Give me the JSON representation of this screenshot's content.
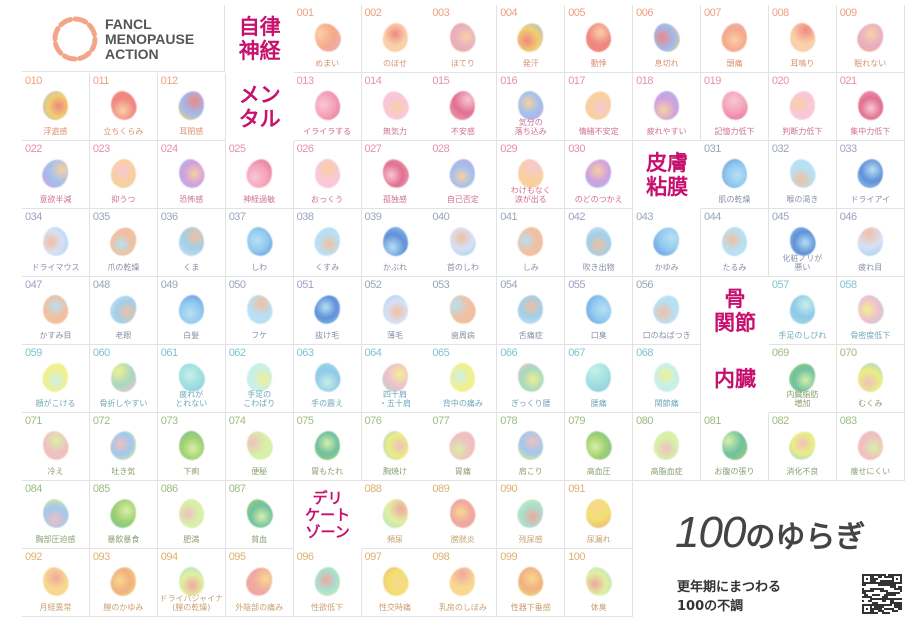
{
  "logo": {
    "lines": [
      "FANCL",
      "MENOPAUSE",
      "ACTION"
    ],
    "color": "#f3a58a"
  },
  "accent_color": "#c8106e",
  "categories": [
    {
      "id": "auto",
      "label": "自律\n神経",
      "num_color": "#f0a080",
      "label_color": "#d99070",
      "palette": [
        "#f6a98a",
        "#f9d0a8",
        "#e8b0c0",
        "#f0d070",
        "#f08880",
        "#a0b8f0"
      ]
    },
    {
      "id": "mental",
      "label": "メン\nタル",
      "num_color": "#e890a8",
      "label_color": "#d0708e",
      "palette": [
        "#f4a0b8",
        "#f8c8d8",
        "#e07090",
        "#a0c0f0",
        "#f8d0a0",
        "#d0a0e0"
      ]
    },
    {
      "id": "skin",
      "label": "皮膚\n粘膜",
      "num_color": "#9aa4bc",
      "label_color": "#8890a8",
      "palette": [
        "#90c8f0",
        "#b8e0f4",
        "#6090d8",
        "#d8e0f8",
        "#f0c0a0",
        "#a0d0e8"
      ]
    },
    {
      "id": "bone",
      "label": "骨\n関節",
      "num_color": "#7cc4d0",
      "label_color": "#70a8b8",
      "palette": [
        "#a0e0e0",
        "#c8f0e8",
        "#90c8e8",
        "#f0c0d0",
        "#f0f090",
        "#a8d8c0"
      ]
    },
    {
      "id": "internal",
      "label": "内臓",
      "num_color": "#9cbc80",
      "label_color": "#8aa070",
      "palette": [
        "#a0d070",
        "#d8f0a8",
        "#70c0a0",
        "#e8f080",
        "#f0c0c0",
        "#a0c8f0"
      ]
    },
    {
      "id": "delicate",
      "label": "デリ\nケート\nゾーン",
      "num_color": "#e0b070",
      "label_color": "#c8a070",
      "palette": [
        "#f0e070",
        "#f8d890",
        "#f0b080",
        "#e0f0a0",
        "#f0a8a0",
        "#a8e0d0"
      ]
    }
  ],
  "items": [
    {
      "n": "001",
      "label": "めまい",
      "cat": "auto"
    },
    {
      "n": "002",
      "label": "のぼせ",
      "cat": "auto"
    },
    {
      "n": "003",
      "label": "ほてり",
      "cat": "auto"
    },
    {
      "n": "004",
      "label": "発汗",
      "cat": "auto"
    },
    {
      "n": "005",
      "label": "動悸",
      "cat": "auto"
    },
    {
      "n": "006",
      "label": "息切れ",
      "cat": "auto"
    },
    {
      "n": "007",
      "label": "頭痛",
      "cat": "auto"
    },
    {
      "n": "008",
      "label": "耳鳴り",
      "cat": "auto"
    },
    {
      "n": "009",
      "label": "眠れない",
      "cat": "auto"
    },
    {
      "n": "010",
      "label": "浮遊感",
      "cat": "auto"
    },
    {
      "n": "011",
      "label": "立ちくらみ",
      "cat": "auto"
    },
    {
      "n": "012",
      "label": "耳閉感",
      "cat": "auto"
    },
    {
      "n": "013",
      "label": "イライラする",
      "cat": "mental"
    },
    {
      "n": "014",
      "label": "無気力",
      "cat": "mental"
    },
    {
      "n": "015",
      "label": "不安感",
      "cat": "mental"
    },
    {
      "n": "016",
      "label": "気分の\n落ち込み",
      "cat": "mental"
    },
    {
      "n": "017",
      "label": "情緒不安定",
      "cat": "mental"
    },
    {
      "n": "018",
      "label": "疲れやすい",
      "cat": "mental"
    },
    {
      "n": "019",
      "label": "記憶力低下",
      "cat": "mental"
    },
    {
      "n": "020",
      "label": "判断力低下",
      "cat": "mental"
    },
    {
      "n": "021",
      "label": "集中力低下",
      "cat": "mental"
    },
    {
      "n": "022",
      "label": "意欲半減",
      "cat": "mental"
    },
    {
      "n": "023",
      "label": "抑うつ",
      "cat": "mental"
    },
    {
      "n": "024",
      "label": "恐怖感",
      "cat": "mental"
    },
    {
      "n": "025",
      "label": "神経過敏",
      "cat": "mental"
    },
    {
      "n": "026",
      "label": "おっくう",
      "cat": "mental"
    },
    {
      "n": "027",
      "label": "孤独感",
      "cat": "mental"
    },
    {
      "n": "028",
      "label": "自己否定",
      "cat": "mental"
    },
    {
      "n": "029",
      "label": "わけもなく\n涙が出る",
      "cat": "mental"
    },
    {
      "n": "030",
      "label": "のどのつかえ",
      "cat": "mental"
    },
    {
      "n": "031",
      "label": "肌の乾燥",
      "cat": "skin"
    },
    {
      "n": "032",
      "label": "喉の渇き",
      "cat": "skin"
    },
    {
      "n": "033",
      "label": "ドライアイ",
      "cat": "skin"
    },
    {
      "n": "034",
      "label": "ドライマウス",
      "cat": "skin"
    },
    {
      "n": "035",
      "label": "爪の乾燥",
      "cat": "skin"
    },
    {
      "n": "036",
      "label": "くま",
      "cat": "skin"
    },
    {
      "n": "037",
      "label": "しわ",
      "cat": "skin"
    },
    {
      "n": "038",
      "label": "くすみ",
      "cat": "skin"
    },
    {
      "n": "039",
      "label": "かぶれ",
      "cat": "skin"
    },
    {
      "n": "040",
      "label": "首のしわ",
      "cat": "skin"
    },
    {
      "n": "041",
      "label": "しみ",
      "cat": "skin"
    },
    {
      "n": "042",
      "label": "吹き出物",
      "cat": "skin"
    },
    {
      "n": "043",
      "label": "かゆみ",
      "cat": "skin"
    },
    {
      "n": "044",
      "label": "たるみ",
      "cat": "skin"
    },
    {
      "n": "045",
      "label": "化粧ノリが\n悪い",
      "cat": "skin"
    },
    {
      "n": "046",
      "label": "疲れ目",
      "cat": "skin"
    },
    {
      "n": "047",
      "label": "かすみ目",
      "cat": "skin"
    },
    {
      "n": "048",
      "label": "老眼",
      "cat": "skin"
    },
    {
      "n": "049",
      "label": "白髪",
      "cat": "skin"
    },
    {
      "n": "050",
      "label": "フケ",
      "cat": "skin"
    },
    {
      "n": "051",
      "label": "抜け毛",
      "cat": "skin"
    },
    {
      "n": "052",
      "label": "薄毛",
      "cat": "skin"
    },
    {
      "n": "053",
      "label": "歯周病",
      "cat": "skin"
    },
    {
      "n": "054",
      "label": "舌痛症",
      "cat": "skin"
    },
    {
      "n": "055",
      "label": "口臭",
      "cat": "skin"
    },
    {
      "n": "056",
      "label": "口のねばつき",
      "cat": "skin"
    },
    {
      "n": "057",
      "label": "手足のしびれ",
      "cat": "bone"
    },
    {
      "n": "058",
      "label": "骨密度低下",
      "cat": "bone"
    },
    {
      "n": "059",
      "label": "顔がこける",
      "cat": "bone"
    },
    {
      "n": "060",
      "label": "骨折しやすい",
      "cat": "bone"
    },
    {
      "n": "061",
      "label": "疲れが\nとれない",
      "cat": "bone"
    },
    {
      "n": "062",
      "label": "手足の\nこわばり",
      "cat": "bone"
    },
    {
      "n": "063",
      "label": "手の震え",
      "cat": "bone"
    },
    {
      "n": "064",
      "label": "四十肩\n・五十肩",
      "cat": "bone"
    },
    {
      "n": "065",
      "label": "背中の痛み",
      "cat": "bone"
    },
    {
      "n": "066",
      "label": "ぎっくり腰",
      "cat": "bone"
    },
    {
      "n": "067",
      "label": "腰痛",
      "cat": "bone"
    },
    {
      "n": "068",
      "label": "関節痛",
      "cat": "bone"
    },
    {
      "n": "069",
      "label": "内臓脂肪\n増加",
      "cat": "internal"
    },
    {
      "n": "070",
      "label": "むくみ",
      "cat": "internal"
    },
    {
      "n": "071",
      "label": "冷え",
      "cat": "internal"
    },
    {
      "n": "072",
      "label": "吐き気",
      "cat": "internal"
    },
    {
      "n": "073",
      "label": "下痢",
      "cat": "internal"
    },
    {
      "n": "074",
      "label": "便秘",
      "cat": "internal"
    },
    {
      "n": "075",
      "label": "胃もたれ",
      "cat": "internal"
    },
    {
      "n": "076",
      "label": "胸焼け",
      "cat": "internal"
    },
    {
      "n": "077",
      "label": "胃痛",
      "cat": "internal"
    },
    {
      "n": "078",
      "label": "肩こり",
      "cat": "internal"
    },
    {
      "n": "079",
      "label": "高血圧",
      "cat": "internal"
    },
    {
      "n": "080",
      "label": "高脂血症",
      "cat": "internal"
    },
    {
      "n": "081",
      "label": "お腹の張り",
      "cat": "internal"
    },
    {
      "n": "082",
      "label": "消化不良",
      "cat": "internal"
    },
    {
      "n": "083",
      "label": "痩せにくい",
      "cat": "internal"
    },
    {
      "n": "084",
      "label": "胸部圧迫感",
      "cat": "internal"
    },
    {
      "n": "085",
      "label": "暴飲暴食",
      "cat": "internal"
    },
    {
      "n": "086",
      "label": "肥満",
      "cat": "internal"
    },
    {
      "n": "087",
      "label": "貧血",
      "cat": "internal"
    },
    {
      "n": "088",
      "label": "頻尿",
      "cat": "delicate"
    },
    {
      "n": "089",
      "label": "膀胱炎",
      "cat": "delicate"
    },
    {
      "n": "090",
      "label": "残尿感",
      "cat": "delicate"
    },
    {
      "n": "091",
      "label": "尿漏れ",
      "cat": "delicate"
    },
    {
      "n": "092",
      "label": "月経異常",
      "cat": "delicate"
    },
    {
      "n": "093",
      "label": "膣のかゆみ",
      "cat": "delicate"
    },
    {
      "n": "094",
      "label": "ドライバジャイナ\n(膣の乾燥)",
      "cat": "delicate"
    },
    {
      "n": "095",
      "label": "外陰部の痛み",
      "cat": "delicate"
    },
    {
      "n": "096",
      "label": "性欲低下",
      "cat": "delicate"
    },
    {
      "n": "097",
      "label": "性交時痛",
      "cat": "delicate"
    },
    {
      "n": "098",
      "label": "乳房のしぼみ",
      "cat": "delicate"
    },
    {
      "n": "099",
      "label": "性器下垂感",
      "cat": "delicate"
    },
    {
      "n": "100",
      "label": "体臭",
      "cat": "delicate"
    }
  ],
  "brand": {
    "title_num": "100",
    "title_kana": "のゆらぎ",
    "subtitle": "更年期にまつわる\n100の不調"
  },
  "qr_icon": "qr-code-icon"
}
